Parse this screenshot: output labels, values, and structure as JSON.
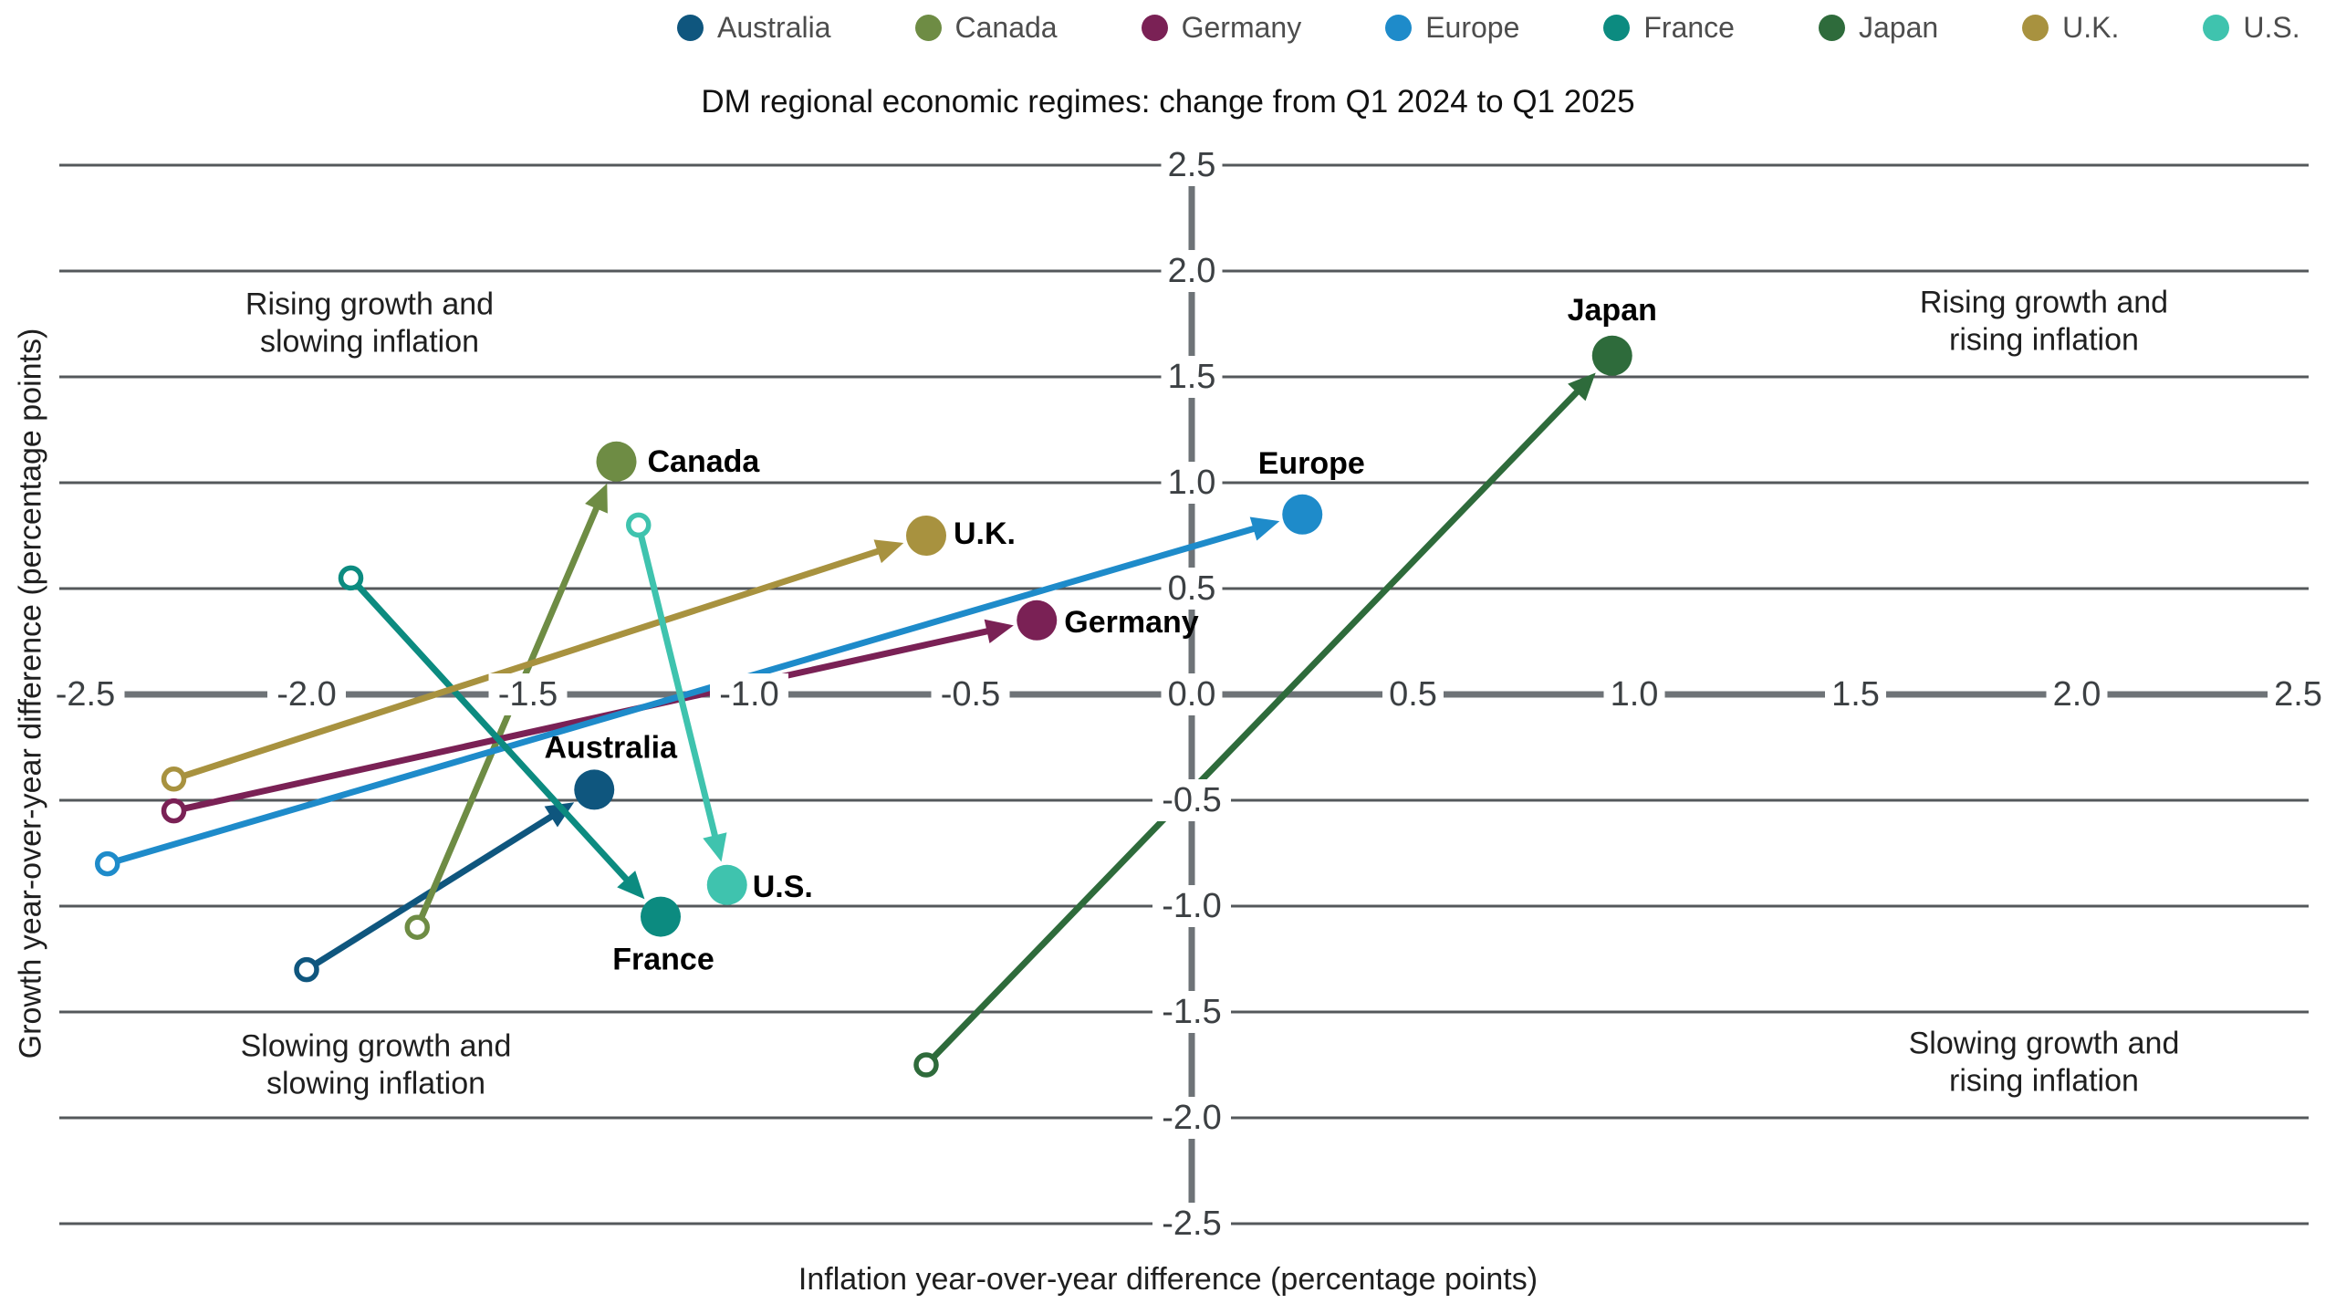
{
  "title": "DM regional economic regimes: change from Q1 2024 to Q1 2025",
  "legend": {
    "items": [
      {
        "label": "Australia",
        "color": "#0f567e"
      },
      {
        "label": "Canada",
        "color": "#6e8c44"
      },
      {
        "label": "Germany",
        "color": "#7a2155"
      },
      {
        "label": "Europe",
        "color": "#1e8bca"
      },
      {
        "label": "France",
        "color": "#0c8b80"
      },
      {
        "label": "Japan",
        "color": "#2e6b3b"
      },
      {
        "label": "U.K.",
        "color": "#a8923f"
      },
      {
        "label": "U.S.",
        "color": "#3fc3ae"
      }
    ]
  },
  "quadrants": {
    "top_left": {
      "line1": "Rising growth and",
      "line2": "slowing inflation"
    },
    "top_right": {
      "line1": "Rising growth and",
      "line2": "rising inflation"
    },
    "bottom_left": {
      "line1": "Slowing growth and",
      "line2": "slowing inflation"
    },
    "bottom_right": {
      "line1": "Slowing growth and",
      "line2": "rising inflation"
    }
  },
  "chart_data": {
    "type": "scatter",
    "title": "DM regional economic regimes: change from Q1 2024 to Q1 2025",
    "xlabel": "Inflation year-over-year difference (percentage points)",
    "ylabel": "Growth year-over-year difference (percentage points)",
    "xlim": [
      -2.5,
      2.5
    ],
    "ylim": [
      -2.5,
      2.5
    ],
    "tick_step": 0.5,
    "grid": "horizontal-only",
    "legend_position": "top",
    "marker": {
      "start": "open-circle",
      "end": "filled-circle-with-arrow",
      "start_period": "Q1 2024",
      "end_period": "Q1 2025"
    },
    "series": [
      {
        "name": "Australia",
        "color": "#0f567e",
        "from": [
          -2.0,
          -1.3
        ],
        "to": [
          -1.35,
          -0.45
        ],
        "label_anchor": "middle",
        "label_offset": [
          18,
          -46
        ]
      },
      {
        "name": "Canada",
        "color": "#6e8c44",
        "from": [
          -1.75,
          -1.1
        ],
        "to": [
          -1.3,
          1.1
        ],
        "label_anchor": "start",
        "label_offset": [
          34,
          0
        ]
      },
      {
        "name": "Germany",
        "color": "#7a2155",
        "from": [
          -2.3,
          -0.55
        ],
        "to": [
          -0.35,
          0.35
        ],
        "label_anchor": "start",
        "label_offset": [
          30,
          2
        ]
      },
      {
        "name": "Europe",
        "color": "#1e8bca",
        "from": [
          -2.45,
          -0.8
        ],
        "to": [
          0.25,
          0.85
        ],
        "label_anchor": "middle",
        "label_offset": [
          10,
          -56
        ]
      },
      {
        "name": "France",
        "color": "#0c8b80",
        "from": [
          -1.9,
          0.55
        ],
        "to": [
          -1.2,
          -1.05
        ],
        "label_anchor": "middle",
        "label_offset": [
          3,
          47
        ]
      },
      {
        "name": "Japan",
        "color": "#2e6b3b",
        "from": [
          -0.6,
          -1.75
        ],
        "to": [
          0.95,
          1.6
        ],
        "label_anchor": "middle",
        "label_offset": [
          0,
          -50
        ]
      },
      {
        "name": "U.K.",
        "color": "#a8923f",
        "from": [
          -2.3,
          -0.4
        ],
        "to": [
          -0.6,
          0.75
        ],
        "label_anchor": "start",
        "label_offset": [
          30,
          -2
        ]
      },
      {
        "name": "U.S.",
        "color": "#3fc3ae",
        "from": [
          -1.25,
          0.8
        ],
        "to": [
          -1.05,
          -0.9
        ],
        "label_anchor": "start",
        "label_offset": [
          28,
          2
        ]
      }
    ]
  }
}
